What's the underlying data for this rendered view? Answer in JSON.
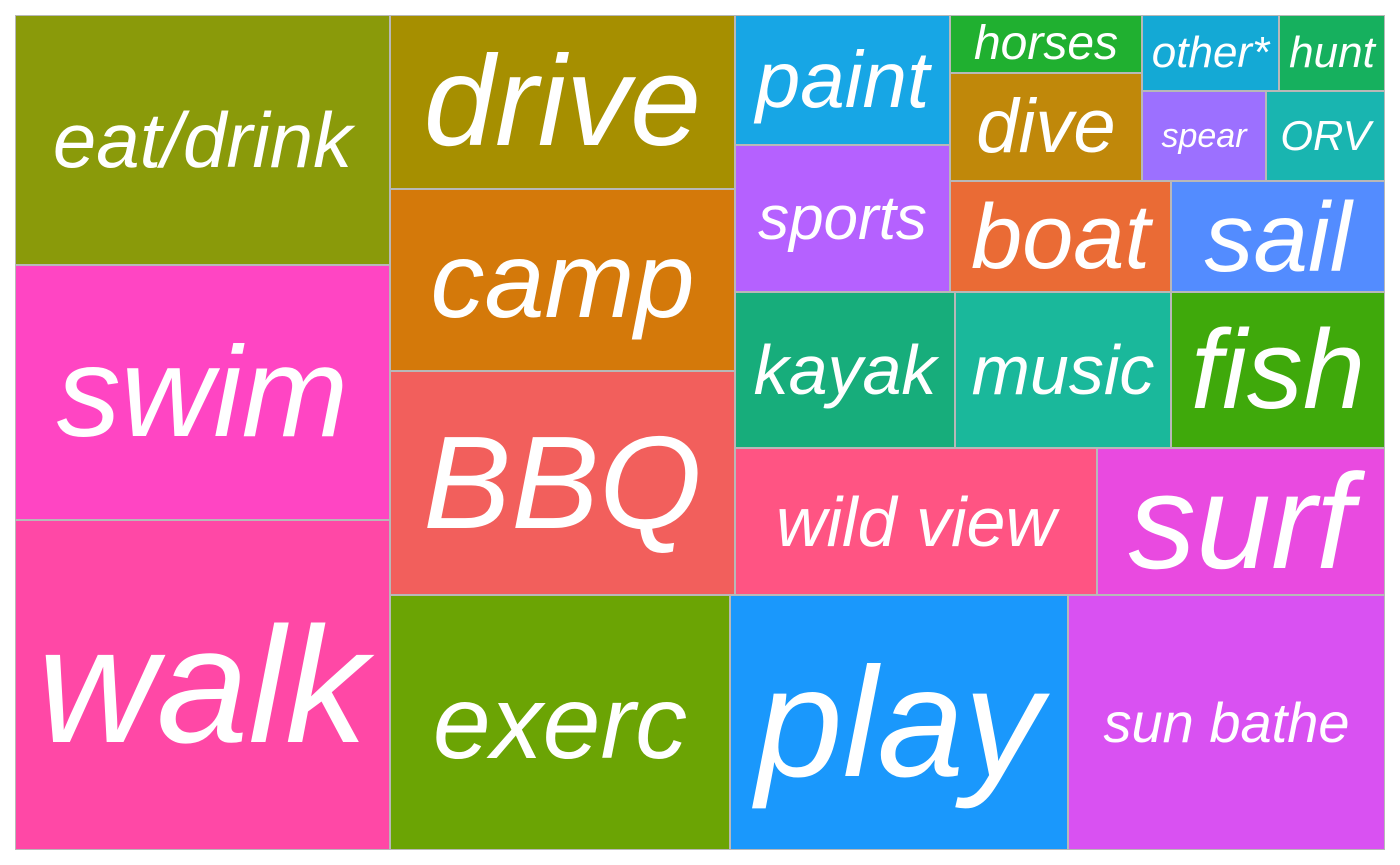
{
  "chart_data": {
    "type": "treemap",
    "items": [
      {
        "label": "eat/drink",
        "color": "#8a9a0a"
      },
      {
        "label": "swim",
        "color": "#ff45c3"
      },
      {
        "label": "walk",
        "color": "#ff48a6"
      },
      {
        "label": "drive",
        "color": "#a68f00"
      },
      {
        "label": "camp",
        "color": "#d4790a"
      },
      {
        "label": "BBQ",
        "color": "#f25f5c"
      },
      {
        "label": "exerc",
        "color": "#6ba404"
      },
      {
        "label": "play",
        "color": "#1a98fc"
      },
      {
        "label": "sun bathe",
        "color": "#d951f2"
      },
      {
        "label": "paint",
        "color": "#17a6e5"
      },
      {
        "label": "sports",
        "color": "#b561ff"
      },
      {
        "label": "horses",
        "color": "#20b030"
      },
      {
        "label": "dive",
        "color": "#c0880a"
      },
      {
        "label": "other*",
        "color": "#14a9d5"
      },
      {
        "label": "hunt",
        "color": "#16b05e"
      },
      {
        "label": "spear",
        "color": "#9c70ff"
      },
      {
        "label": "ORV",
        "color": "#19b5b0"
      },
      {
        "label": "boat",
        "color": "#ea6b35"
      },
      {
        "label": "sail",
        "color": "#538cff"
      },
      {
        "label": "kayak",
        "color": "#17ad7b"
      },
      {
        "label": "music",
        "color": "#1ab89b"
      },
      {
        "label": "fish",
        "color": "#3fa90b"
      },
      {
        "label": "wild view",
        "color": "#ff5483"
      },
      {
        "label": "surf",
        "color": "#e94ae0"
      }
    ]
  }
}
